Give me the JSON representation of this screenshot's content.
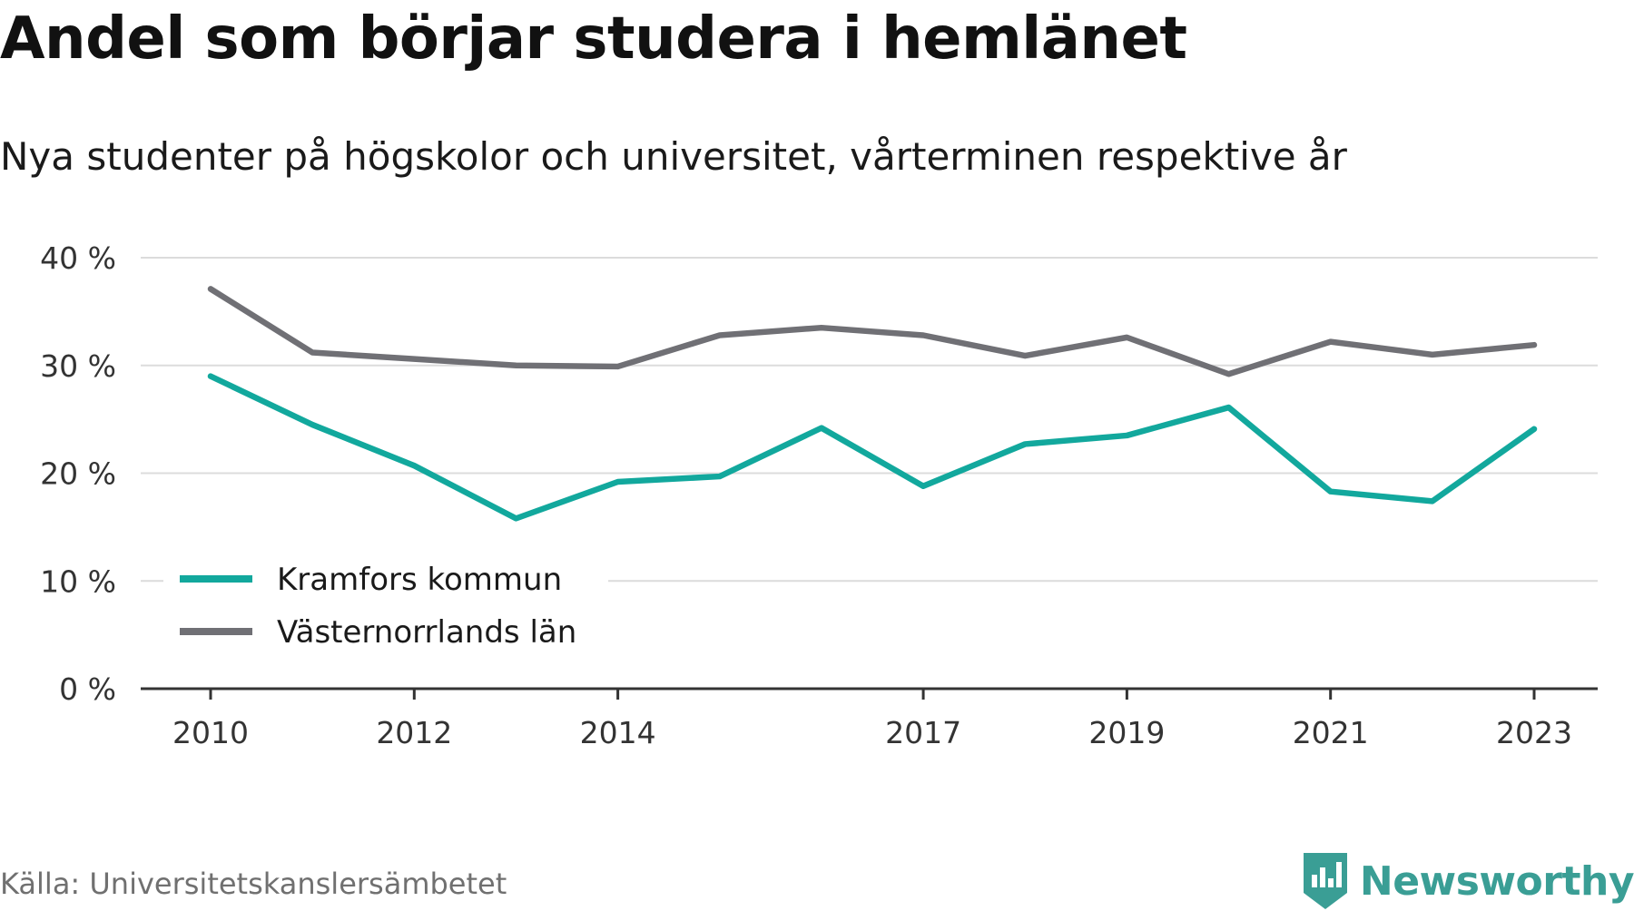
{
  "title": "Andel som börjar studera i hemlänet",
  "subtitle": "Nya studenter på högskolor och universitet, vårterminen respektive år",
  "source": "Källa: Universitetskanslersämbetet",
  "logo": {
    "text": "Newsworthy",
    "icon": "newsworthy-logo-icon",
    "color": "#3a9e95"
  },
  "chart_data": {
    "type": "line",
    "x": [
      2010,
      2011,
      2012,
      2013,
      2014,
      2015,
      2016,
      2017,
      2018,
      2019,
      2020,
      2021,
      2022,
      2023
    ],
    "x_tick_labels": [
      "2010",
      "2012",
      "2014",
      "2017",
      "2019",
      "2021",
      "2023"
    ],
    "y_tick_labels": [
      "0 %",
      "10 %",
      "20 %",
      "30 %",
      "40 %"
    ],
    "ylim": [
      0,
      40
    ],
    "grid": true,
    "legend_position": "bottom-left",
    "series": [
      {
        "name": "Kramfors kommun",
        "color": "#12a89d",
        "values": [
          29.0,
          24.5,
          20.7,
          15.8,
          19.2,
          19.7,
          24.2,
          18.8,
          22.7,
          23.5,
          26.1,
          18.3,
          17.4,
          24.1
        ]
      },
      {
        "name": "Västernorrlands län",
        "color": "#707075",
        "values": [
          37.1,
          31.2,
          30.6,
          30.0,
          29.9,
          32.8,
          33.5,
          32.8,
          30.9,
          32.6,
          29.2,
          32.2,
          31.0,
          31.9
        ]
      }
    ]
  }
}
